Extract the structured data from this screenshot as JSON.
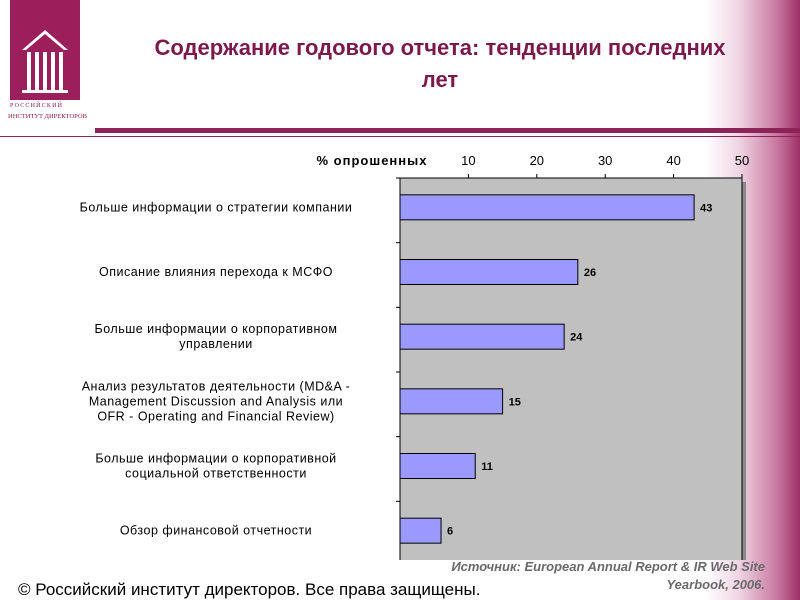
{
  "title": "Содержание годового отчета: тенденции последних лет",
  "logo": {
    "line1": "РОССИЙСКИЙ",
    "line2": "ИНСТИТУТ ДИРЕКТОРОВ"
  },
  "chart_data": {
    "type": "bar",
    "orientation": "horizontal",
    "xlabel": "% опрошенных",
    "xlim": [
      0,
      50
    ],
    "xticks": [
      10,
      20,
      30,
      40,
      50
    ],
    "axis_position": "top",
    "categories": [
      [
        "Больше информации о стратегии компании"
      ],
      [
        "Описание влияния перехода к МСФО"
      ],
      [
        "Больше информации о корпоративном",
        "управлении"
      ],
      [
        "Анализ результатов деятельности (MD&A -",
        "Management Discussion and Analysis или",
        "OFR - Operating and Financial Review)"
      ],
      [
        "Больше информации о корпоративной",
        "социальной ответственности"
      ],
      [
        "Обзор финансовой отчетности"
      ]
    ],
    "values": [
      43,
      26,
      24,
      15,
      11,
      6
    ],
    "data_labels": [
      "43",
      "26",
      "24",
      "15",
      "11",
      "6"
    ],
    "colors": {
      "bar": "#9999ff",
      "plot_bg": "#c0c0c0"
    }
  },
  "source": "Источник: European Annual Report & IR Web Site Yearbook, 2006.",
  "footer": "© Российский институт директоров. Все права защищены."
}
